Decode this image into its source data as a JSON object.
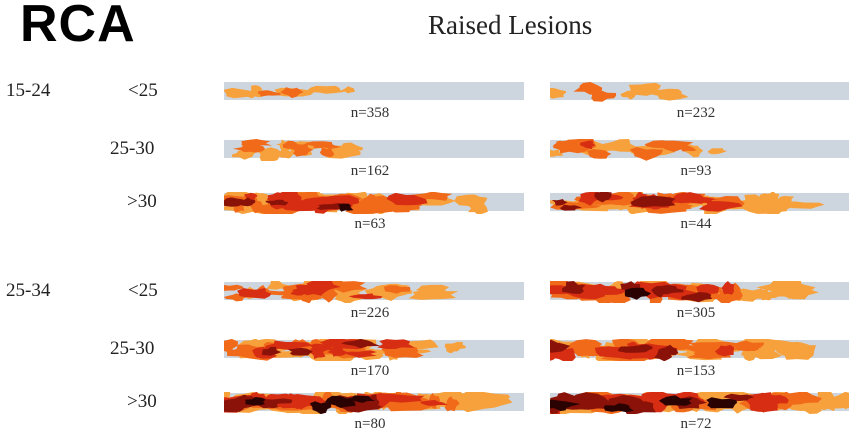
{
  "vessel": "RCA",
  "title": "Raised Lesions",
  "colors": {
    "background_strip": "#cdd6de",
    "level_1": "#f7a13c",
    "level_2": "#f06a1a",
    "level_3": "#d72d12",
    "level_4": "#8a1208",
    "level_5": "#2a0202"
  },
  "groups": [
    {
      "age": "15-24",
      "rows": [
        {
          "bmi": "<25",
          "strips": [
            {
              "n": "n=358",
              "severity": 0.1
            },
            {
              "n": "n=232",
              "severity": 0.1
            }
          ]
        },
        {
          "bmi": "25-30",
          "strips": [
            {
              "n": "n=162",
              "severity": 0.25
            },
            {
              "n": "n=93",
              "severity": 0.35
            }
          ]
        },
        {
          "bmi": ">30",
          "strips": [
            {
              "n": "n=63",
              "severity": 0.78
            },
            {
              "n": "n=44",
              "severity": 0.72
            }
          ]
        }
      ]
    },
    {
      "age": "25-34",
      "rows": [
        {
          "bmi": "<25",
          "strips": [
            {
              "n": "n=226",
              "severity": 0.55
            },
            {
              "n": "n=305",
              "severity": 0.78
            }
          ]
        },
        {
          "bmi": "25-30",
          "strips": [
            {
              "n": "n=170",
              "severity": 0.68
            },
            {
              "n": "n=153",
              "severity": 0.75
            }
          ]
        },
        {
          "bmi": ">30",
          "strips": [
            {
              "n": "n=80",
              "severity": 0.95
            },
            {
              "n": "n=72",
              "severity": 1.0
            }
          ]
        }
      ]
    }
  ]
}
